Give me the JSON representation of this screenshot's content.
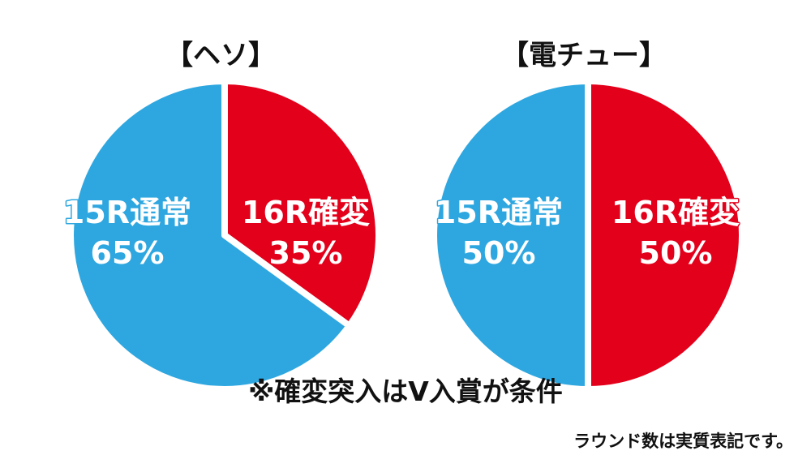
{
  "colors": {
    "kakuhen": "#e3001b",
    "tsujo": "#2ea7e0"
  },
  "chart_data": [
    {
      "type": "pie",
      "title": "【ヘソ】",
      "slices": [
        {
          "name": "16R確変",
          "value": 35,
          "label": "35%",
          "color": "#e3001b"
        },
        {
          "name": "15R通常",
          "value": 65,
          "label": "65%",
          "color": "#2ea7e0"
        }
      ]
    },
    {
      "type": "pie",
      "title": "【電チュー】",
      "slices": [
        {
          "name": "16R確変",
          "value": 50,
          "label": "50%",
          "color": "#e3001b"
        },
        {
          "name": "15R通常",
          "value": 50,
          "label": "50%",
          "color": "#2ea7e0"
        }
      ]
    }
  ],
  "footnote": "※確変突入はV入賞が条件",
  "note": "ラウンド数は実質表記です。"
}
